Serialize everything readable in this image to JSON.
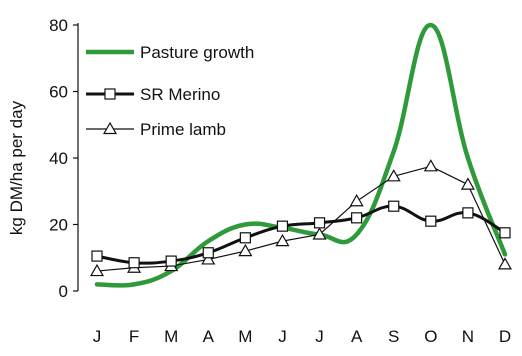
{
  "chart_data": {
    "type": "line",
    "title": "",
    "xlabel": "",
    "ylabel": "kg DM/ha per day",
    "categories": [
      "J",
      "F",
      "M",
      "A",
      "M",
      "J",
      "J",
      "A",
      "S",
      "O",
      "N",
      "D"
    ],
    "ylim": [
      0,
      80
    ],
    "yticks": [
      "0",
      "20",
      "40",
      "60",
      "80"
    ],
    "grid": false,
    "legend_position": "top-left",
    "series": [
      {
        "name": "Pasture growth",
        "marker": "none",
        "color": "#2e9a3a",
        "values": [
          2,
          2,
          6,
          15,
          20,
          19,
          17,
          17,
          42,
          80,
          40,
          11
        ]
      },
      {
        "name": "SR Merino",
        "marker": "square",
        "color": "#111111",
        "values": [
          10.5,
          8.5,
          9,
          11.5,
          16,
          19.5,
          20.5,
          22,
          25.5,
          21,
          23.5,
          17.5
        ]
      },
      {
        "name": "Prime lamb",
        "marker": "triangle",
        "color": "#111111",
        "values": [
          6,
          7,
          7.5,
          9.5,
          12,
          15,
          17,
          27,
          34.5,
          37.5,
          32,
          8
        ]
      }
    ]
  }
}
